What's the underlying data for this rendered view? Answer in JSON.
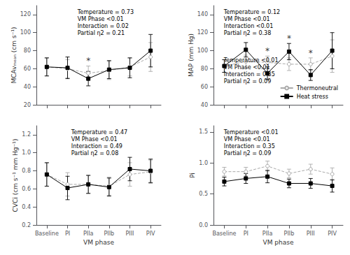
{
  "chart_data": [
    {
      "type": "line",
      "ylabel": "MCAvₘₑₐₙ (cm s⁻¹)",
      "categories": [
        "Baseline",
        "PI",
        "PIIa",
        "PIIb",
        "PIII",
        "PIV"
      ],
      "series": [
        {
          "name": "Thermoneutral",
          "color": "#aaaaaa",
          "marker": "circle",
          "line_style": "dashed",
          "values": [
            62,
            60,
            55,
            58,
            62,
            73
          ],
          "errors": [
            10,
            10,
            8,
            10,
            10,
            16
          ]
        },
        {
          "name": "Heat stress",
          "color": "#000000",
          "marker": "square",
          "line_style": "solid",
          "values": [
            62,
            61,
            49,
            59,
            61,
            80
          ],
          "errors": [
            10,
            12,
            8,
            10,
            11,
            18
          ]
        }
      ],
      "ylim": [
        20,
        130
      ],
      "yticks": [
        20,
        40,
        60,
        80,
        100,
        120
      ],
      "grid": false,
      "tick_labels": "y",
      "annotations": [
        [
          "Temperature = 0.73",
          "VM Phase <0.01",
          "Interaction = 0.02",
          "Partial η2 = 0.21"
        ]
      ],
      "stars": [
        {
          "text": "*",
          "category": "PIIa"
        }
      ]
    },
    {
      "type": "line",
      "ylabel": "MAP (mm Hg)",
      "categories": [
        "Baseline",
        "PI",
        "PIIa",
        "PIIb",
        "PIII",
        "PIV"
      ],
      "series": [
        {
          "name": "Thermoneutral",
          "color": "#aaaaaa",
          "marker": "circle",
          "line_style": "dashed",
          "values": [
            83,
            88,
            87,
            85,
            85,
            94
          ],
          "errors": [
            7,
            7,
            7,
            7,
            7,
            18
          ]
        },
        {
          "name": "Heat stress",
          "color": "#000000",
          "marker": "square",
          "line_style": "solid",
          "values": [
            83,
            101,
            75,
            99,
            73,
            100
          ],
          "errors": [
            7,
            8,
            7,
            9,
            6,
            20
          ]
        }
      ],
      "ylim": [
        40,
        150
      ],
      "yticks": [
        40,
        60,
        80,
        100,
        120,
        140
      ],
      "grid": false,
      "tick_labels": "y",
      "legend": "lower right",
      "annotations": [
        [
          "Temperature = 0.12",
          "VM Phase <0.01",
          "Interaction <0.01",
          "Partial η2 = 0.38"
        ],
        [
          "Temperature <0.01",
          "VM Phase <0.01",
          "Interaction = 0.35",
          "Partial η2 = 0.09"
        ]
      ],
      "stars": [
        {
          "text": "*",
          "category": "PIIa"
        },
        {
          "text": "*",
          "category": "PIIb"
        },
        {
          "text": "*",
          "category": "PIII"
        }
      ]
    },
    {
      "type": "line",
      "ylabel": "CVCi (cm s⁻¹ mm Hg⁻¹)",
      "xlabel": "VM phase",
      "categories": [
        "Baseline",
        "PI",
        "PIIa",
        "PIIb",
        "PIII",
        "PIV"
      ],
      "series": [
        {
          "name": "Thermoneutral",
          "color": "#aaaaaa",
          "marker": "circle",
          "line_style": "dashed",
          "values": [
            0.76,
            0.65,
            0.65,
            0.63,
            0.76,
            0.79
          ],
          "errors": [
            0.13,
            0.13,
            0.1,
            0.1,
            0.13,
            0.13
          ]
        },
        {
          "name": "Heat stress",
          "color": "#000000",
          "marker": "square",
          "line_style": "solid",
          "values": [
            0.76,
            0.61,
            0.65,
            0.62,
            0.82,
            0.8
          ],
          "errors": [
            0.13,
            0.13,
            0.1,
            0.1,
            0.13,
            0.13
          ]
        }
      ],
      "ylim": [
        0.2,
        1.3
      ],
      "yticks": [
        0.2,
        0.4,
        0.6,
        0.8,
        {
          "value": 1.0,
          "label": "1.0"
        },
        1.2
      ],
      "grid": false,
      "annotations": [
        [
          "Temperature = 0.47",
          "VM Phase <0.01",
          "Interaction = 0.49",
          "Partial η2 = 0.08"
        ]
      ]
    },
    {
      "type": "line",
      "ylabel": "Pi",
      "xlabel": "VM phase",
      "categories": [
        "Baseline",
        "PI",
        "PIIa",
        "PIIb",
        "PIII",
        "PIV"
      ],
      "series": [
        {
          "name": "Thermoneutral",
          "color": "#aaaaaa",
          "marker": "circle",
          "line_style": "dashed",
          "values": [
            0.86,
            0.86,
            0.95,
            0.83,
            0.9,
            0.82
          ],
          "errors": [
            0.07,
            0.07,
            0.08,
            0.07,
            0.08,
            0.1
          ]
        },
        {
          "name": "Heat stress",
          "color": "#000000",
          "marker": "square",
          "line_style": "solid",
          "values": [
            0.7,
            0.75,
            0.78,
            0.67,
            0.67,
            0.63
          ],
          "errors": [
            0.07,
            0.08,
            0.1,
            0.07,
            0.08,
            0.1
          ]
        }
      ],
      "ylim": [
        0.0,
        1.6
      ],
      "yticks": [
        {
          "value": 0.0,
          "label": "0.0"
        },
        0.5,
        {
          "value": 1.0,
          "label": "1.0"
        },
        1.5
      ],
      "grid": false,
      "annotations": [
        [
          "Temperature <0.01",
          "VM Phase <0.01",
          "Interaction = 0.35",
          "Partial η2 = 0.09"
        ]
      ]
    }
  ]
}
